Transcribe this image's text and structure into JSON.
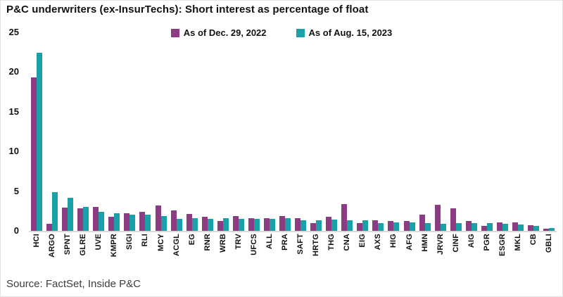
{
  "title": "P&C underwriters (ex-InsurTechs): Short interest as percentage of float",
  "source": "Source: FactSet, Inside P&C",
  "chart_data": {
    "type": "bar",
    "title": "P&C underwriters (ex-InsurTechs): Short interest as percentage of float",
    "xlabel": "",
    "ylabel": "",
    "ylim": [
      0,
      25
    ],
    "yticks": [
      0,
      5,
      10,
      15,
      20,
      25
    ],
    "grid": false,
    "legend_position": "top-center",
    "categories": [
      "HCI",
      "ARGO",
      "SPNT",
      "GLRE",
      "UVE",
      "KMPR",
      "SIGI",
      "RLI",
      "MCY",
      "ACGL",
      "EG",
      "RNR",
      "WRB",
      "TRV",
      "UFCS",
      "ALL",
      "PRA",
      "SAFT",
      "HRTG",
      "THG",
      "CNA",
      "EIG",
      "AXS",
      "HIG",
      "AFG",
      "HMN",
      "JRVR",
      "CINF",
      "AIG",
      "PGR",
      "ESGR",
      "MKL",
      "CB",
      "GBLI"
    ],
    "series": [
      {
        "name": "As of Dec. 29, 2022",
        "color": "#8C3C82",
        "values": [
          19.3,
          0.9,
          2.9,
          2.8,
          3.0,
          1.8,
          2.2,
          2.4,
          3.2,
          2.6,
          2.1,
          1.8,
          1.2,
          1.9,
          1.6,
          1.6,
          1.9,
          1.6,
          1.0,
          1.8,
          3.4,
          1.0,
          1.3,
          1.2,
          1.2,
          2.0,
          3.3,
          2.8,
          1.2,
          0.6,
          1.1,
          1.1,
          0.7,
          0.3
        ]
      },
      {
        "name": "As of Aug. 15, 2023",
        "color": "#18A1A6",
        "values": [
          22.4,
          4.9,
          4.2,
          3.0,
          2.4,
          2.2,
          2.0,
          2.0,
          1.9,
          1.5,
          1.6,
          1.5,
          1.6,
          1.5,
          1.5,
          1.5,
          1.6,
          1.3,
          1.3,
          1.4,
          1.3,
          1.3,
          1.0,
          1.1,
          1.1,
          1.0,
          0.9,
          1.0,
          1.0,
          1.0,
          0.9,
          0.8,
          0.6,
          0.4
        ]
      }
    ]
  }
}
